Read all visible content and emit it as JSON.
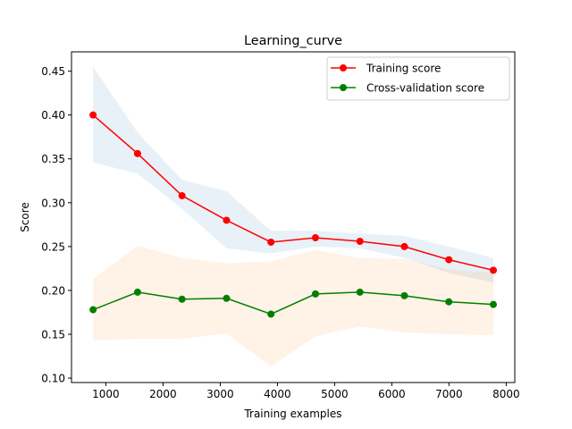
{
  "chart_data": {
    "type": "line",
    "title": "Learning_curve",
    "xlabel": "Training examples",
    "ylabel": "Score",
    "xlim": [
      400,
      8150
    ],
    "ylim": [
      0.095,
      0.472
    ],
    "xticks": [
      1000,
      2000,
      3000,
      4000,
      5000,
      6000,
      7000,
      8000
    ],
    "yticks": [
      0.1,
      0.15,
      0.2,
      0.25,
      0.3,
      0.35,
      0.4,
      0.45
    ],
    "x": [
      777,
      1555,
      2332,
      3110,
      3887,
      4665,
      5442,
      6220,
      6997,
      7775
    ],
    "series": [
      {
        "name": "Training score",
        "color": "#ff0000",
        "values": [
          0.4,
          0.356,
          0.308,
          0.28,
          0.255,
          0.26,
          0.256,
          0.25,
          0.235,
          0.223
        ],
        "band_lower": [
          0.346,
          0.333,
          0.293,
          0.248,
          0.242,
          0.25,
          0.248,
          0.237,
          0.22,
          0.209
        ],
        "band_upper": [
          0.455,
          0.38,
          0.326,
          0.313,
          0.268,
          0.268,
          0.265,
          0.262,
          0.25,
          0.237
        ],
        "band_color": "#1f77b4"
      },
      {
        "name": "Cross-validation score",
        "color": "#008000",
        "values": [
          0.178,
          0.198,
          0.19,
          0.191,
          0.173,
          0.196,
          0.198,
          0.194,
          0.187,
          0.184
        ],
        "band_lower": [
          0.143,
          0.145,
          0.145,
          0.151,
          0.113,
          0.148,
          0.159,
          0.152,
          0.15,
          0.149
        ],
        "band_upper": [
          0.213,
          0.251,
          0.237,
          0.231,
          0.233,
          0.246,
          0.237,
          0.236,
          0.224,
          0.22
        ],
        "band_color": "#ff7f0e"
      }
    ],
    "legend": {
      "position": "upper-right"
    },
    "grid": false
  }
}
